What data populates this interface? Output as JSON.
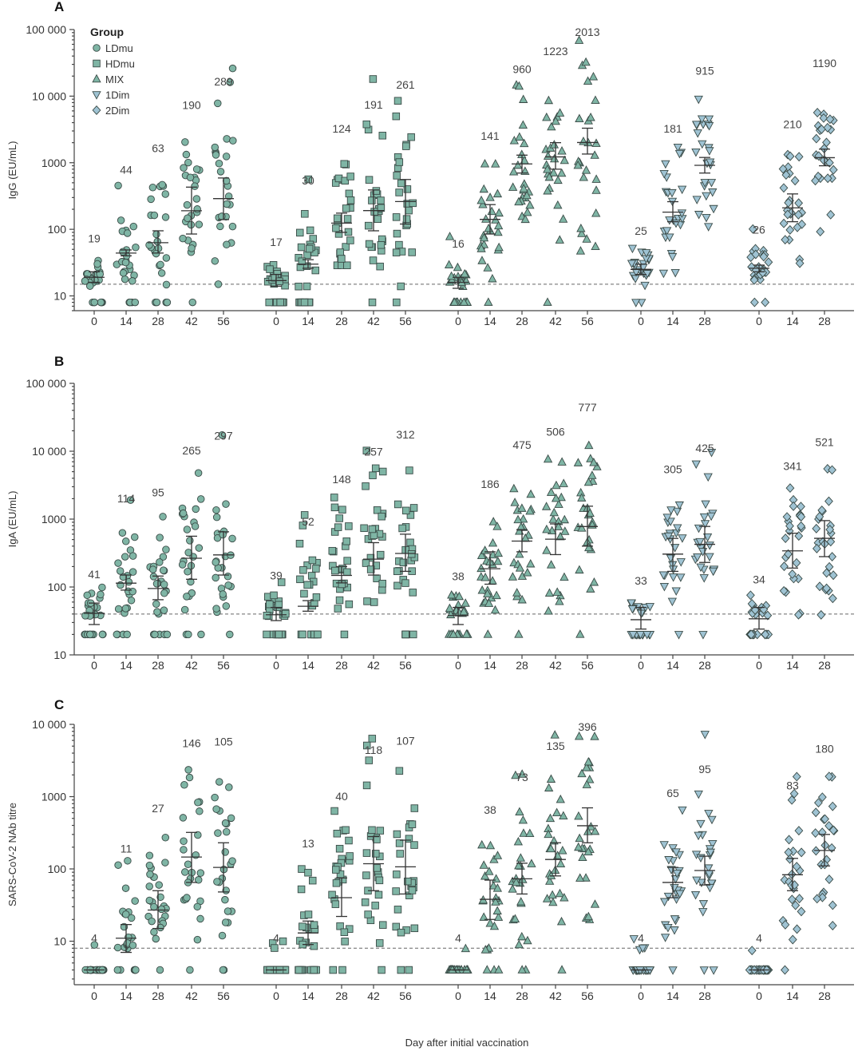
{
  "legend": {
    "title": "Group",
    "items": [
      {
        "label": "LDmu",
        "shape": "circle"
      },
      {
        "label": "HDmu",
        "shape": "square"
      },
      {
        "label": "MIX",
        "shape": "triangle-up"
      },
      {
        "label": "1Dim",
        "shape": "triangle-down"
      },
      {
        "label": "2Dim",
        "shape": "diamond"
      }
    ]
  },
  "colors": {
    "LDmu": "#7fb5a5",
    "HDmu": "#7fb5a5",
    "MIX": "#7fb5a5",
    "1Dim": "#9fc3d3",
    "2Dim": "#9fc3d3",
    "marker_stroke": "#3a4a46"
  },
  "xlabel": "Day after initial vaccination",
  "chart_data": [
    {
      "panel": "A",
      "type": "scatter",
      "scale": "log",
      "ylabel": "IgG (EU/mL)",
      "ylim": [
        6,
        100000
      ],
      "yticks": [
        10,
        100,
        1000,
        10000,
        100000
      ],
      "ytick_labels": [
        "10",
        "100",
        "1000",
        "10 000",
        "100 000"
      ],
      "lod": 15,
      "groups": [
        {
          "name": "LDmu",
          "days": [
            "0",
            "14",
            "28",
            "42",
            "56"
          ],
          "gm": [
            "19",
            "44",
            "63",
            "190",
            "289"
          ],
          "ci": [
            [
              16,
              23
            ],
            [
              40,
              49
            ],
            [
              44,
              95
            ],
            [
              85,
              430
            ],
            [
              140,
              590
            ]
          ]
        },
        {
          "name": "HDmu",
          "days": [
            "0",
            "14",
            "28",
            "42",
            "56"
          ],
          "gm": [
            "17",
            "30",
            "124",
            "191",
            "261"
          ],
          "ci": [
            [
              14,
              21
            ],
            [
              26,
              35
            ],
            [
              90,
              175
            ],
            [
              95,
              390
            ],
            [
              120,
              560
            ]
          ]
        },
        {
          "name": "MIX",
          "days": [
            "0",
            "14",
            "28",
            "42",
            "56"
          ],
          "gm": [
            "16",
            "141",
            "960",
            "1223",
            "2013"
          ],
          "ci": [
            [
              13,
              19
            ],
            [
              85,
              235
            ],
            [
              700,
              1300
            ],
            [
              800,
              2000
            ],
            [
              1350,
              3300
            ]
          ]
        },
        {
          "name": "1Dim",
          "days": [
            "0",
            "14",
            "28"
          ],
          "gm": [
            "25",
            "181",
            "915"
          ],
          "ci": [
            [
              21,
              30
            ],
            [
              130,
              260
            ],
            [
              700,
              1200
            ]
          ]
        },
        {
          "name": "2Dim",
          "days": [
            "0",
            "14",
            "28"
          ],
          "gm": [
            "26",
            "210",
            "1190"
          ],
          "ci": [
            [
              23,
              29
            ],
            [
              130,
              340
            ],
            [
              900,
              1600
            ]
          ]
        }
      ]
    },
    {
      "panel": "B",
      "type": "scatter",
      "scale": "log",
      "ylabel": "IgA (EU/mL)",
      "ylim": [
        10,
        100000
      ],
      "yticks": [
        10,
        100,
        1000,
        10000,
        100000
      ],
      "ytick_labels": [
        "10",
        "100",
        "1000",
        "10 000",
        "100 000"
      ],
      "lod": 40,
      "groups": [
        {
          "name": "LDmu",
          "days": [
            "0",
            "14",
            "28",
            "42",
            "56"
          ],
          "gm": [
            "41",
            "114",
            "95",
            "265",
            "297"
          ],
          "ci": [
            [
              28,
              58
            ],
            [
              90,
              150
            ],
            [
              65,
              145
            ],
            [
              130,
              560
            ],
            [
              150,
              650
            ]
          ]
        },
        {
          "name": "HDmu",
          "days": [
            "0",
            "14",
            "28",
            "42",
            "56"
          ],
          "gm": [
            "39",
            "52",
            "148",
            "257",
            "312"
          ],
          "ci": [
            [
              32,
              50
            ],
            [
              44,
              63
            ],
            [
              115,
              200
            ],
            [
              150,
              450
            ],
            [
              170,
              600
            ]
          ]
        },
        {
          "name": "MIX",
          "days": [
            "0",
            "14",
            "28",
            "42",
            "56"
          ],
          "gm": [
            "38",
            "186",
            "475",
            "506",
            "777"
          ],
          "ci": [
            [
              28,
              50
            ],
            [
              110,
              330
            ],
            [
              330,
              700
            ],
            [
              300,
              850
            ],
            [
              400,
              1550
            ]
          ]
        },
        {
          "name": "1Dim",
          "days": [
            "0",
            "14",
            "28"
          ],
          "gm": [
            "33",
            "305",
            "425"
          ],
          "ci": [
            [
              24,
              50
            ],
            [
              170,
              520
            ],
            [
              230,
              780
            ]
          ]
        },
        {
          "name": "2Dim",
          "days": [
            "0",
            "14",
            "28"
          ],
          "gm": [
            "34",
            "341",
            "521"
          ],
          "ci": [
            [
              24,
              50
            ],
            [
              190,
              620
            ],
            [
              280,
              950
            ]
          ]
        }
      ]
    },
    {
      "panel": "C",
      "type": "scatter",
      "scale": "log",
      "ylabel": "SARS-CoV-2 NAb titre",
      "ylim": [
        2.5,
        10000
      ],
      "yticks": [
        10,
        100,
        1000,
        10000
      ],
      "ytick_labels": [
        "10",
        "100",
        "1000",
        "10 000"
      ],
      "lod": 8,
      "groups": [
        {
          "name": "LDmu",
          "days": [
            "0",
            "14",
            "28",
            "42",
            "56"
          ],
          "gm": [
            "4",
            "11",
            "27",
            "146",
            "105"
          ],
          "ci": [
            [
              4,
              4
            ],
            [
              7,
              17
            ],
            [
              15,
              50
            ],
            [
              65,
              320
            ],
            [
              48,
              230
            ]
          ]
        },
        {
          "name": "HDmu",
          "days": [
            "0",
            "14",
            "28",
            "42",
            "56"
          ],
          "gm": [
            "4",
            "13",
            "40",
            "118",
            "107"
          ],
          "ci": [
            [
              4,
              4
            ],
            [
              9,
              19
            ],
            [
              22,
              75
            ],
            [
              50,
              280
            ],
            [
              45,
              250
            ]
          ]
        },
        {
          "name": "MIX",
          "days": [
            "0",
            "14",
            "28",
            "42",
            "56"
          ],
          "gm": [
            "4",
            "38",
            "73",
            "135",
            "396"
          ],
          "ci": [
            [
              4,
              4
            ],
            [
              20,
              70
            ],
            [
              45,
              120
            ],
            [
              80,
              230
            ],
            [
              230,
              700
            ]
          ]
        },
        {
          "name": "1Dim",
          "days": [
            "0",
            "14",
            "28"
          ],
          "gm": [
            "4",
            "65",
            "95"
          ],
          "ci": [
            [
              4,
              4
            ],
            [
              40,
              105
            ],
            [
              60,
              150
            ]
          ]
        },
        {
          "name": "2Dim",
          "days": [
            "0",
            "14",
            "28"
          ],
          "gm": [
            "4",
            "83",
            "180"
          ],
          "ci": [
            [
              4,
              4
            ],
            [
              50,
              140
            ],
            [
              110,
              300
            ]
          ]
        }
      ]
    }
  ]
}
